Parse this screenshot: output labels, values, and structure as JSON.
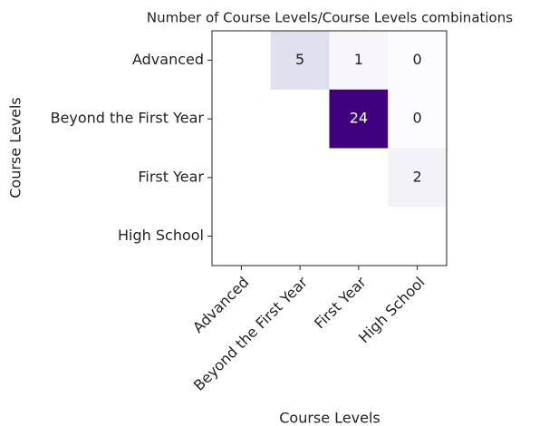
{
  "chart_data": {
    "type": "heatmap",
    "title": "Number of Course Levels/Course Levels combinations",
    "xlabel": "Course Levels",
    "ylabel": "Course Levels",
    "x_categories": [
      "Advanced",
      "Beyond the First Year",
      "First Year",
      "High School"
    ],
    "y_categories": [
      "Advanced",
      "Beyond the First Year",
      "First Year",
      "High School"
    ],
    "values": [
      [
        null,
        5,
        1,
        0
      ],
      [
        null,
        null,
        24,
        0
      ],
      [
        null,
        null,
        null,
        2
      ],
      [
        null,
        null,
        null,
        null
      ]
    ],
    "colormap": "Purples"
  }
}
